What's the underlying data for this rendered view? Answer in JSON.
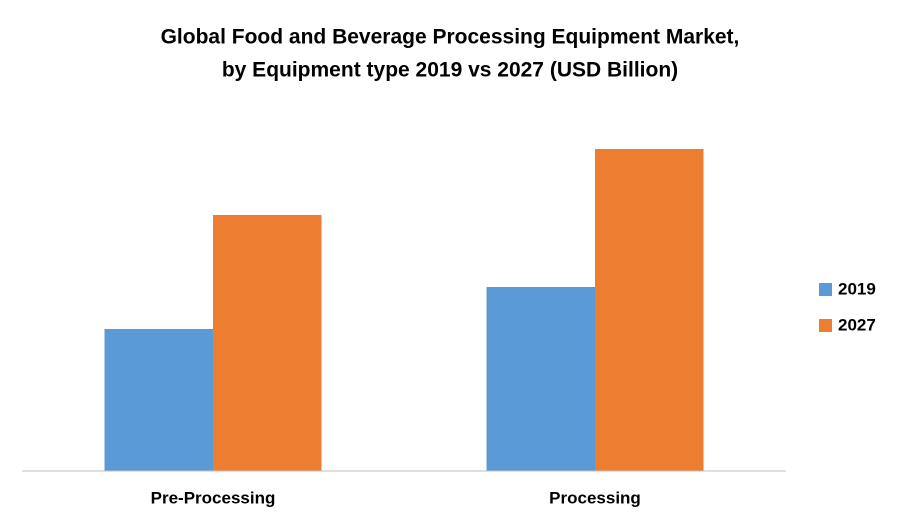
{
  "chart_data": {
    "type": "bar",
    "title": [
      "Global Food and Beverage Processing Equipment Market,",
      "by Equipment type 2019 vs 2027 (USD Billion)"
    ],
    "categories": [
      "Pre-Processing",
      "Processing"
    ],
    "series": [
      {
        "name": "2019",
        "color": "#5b9bd5",
        "values": [
          14.2,
          18.4
        ]
      },
      {
        "name": "2027",
        "color": "#ed7d31",
        "values": [
          25.6,
          32.2
        ]
      }
    ],
    "ylim": [
      0,
      36
    ],
    "legend": "right"
  }
}
